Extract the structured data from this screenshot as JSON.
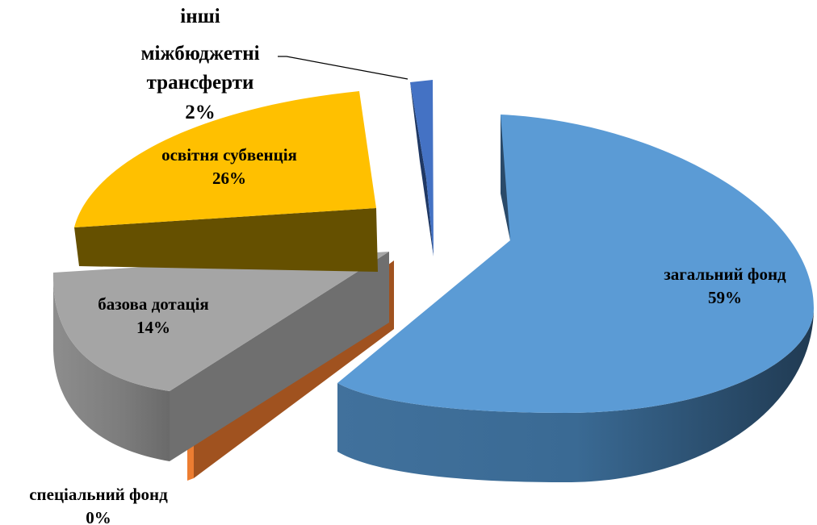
{
  "chart_data": {
    "type": "pie",
    "style": "3d-exploded",
    "title": "",
    "slices": [
      {
        "label": "загальний фонд",
        "value": 59,
        "value_label": "59%",
        "color": "#5b9bd5"
      },
      {
        "label": "спеціальний фонд",
        "value": 0,
        "value_label": "0%",
        "color": "#ed7d31"
      },
      {
        "label": "базова дотація",
        "value": 14,
        "value_label": "14%",
        "color": "#a5a5a5"
      },
      {
        "label": "освітня субвенція",
        "value": 26,
        "value_label": "26%",
        "color": "#ffc000"
      },
      {
        "label": "інші міжбюджетні трансферти",
        "value": 2,
        "value_label": "2%",
        "color": "#4472c4"
      }
    ]
  }
}
